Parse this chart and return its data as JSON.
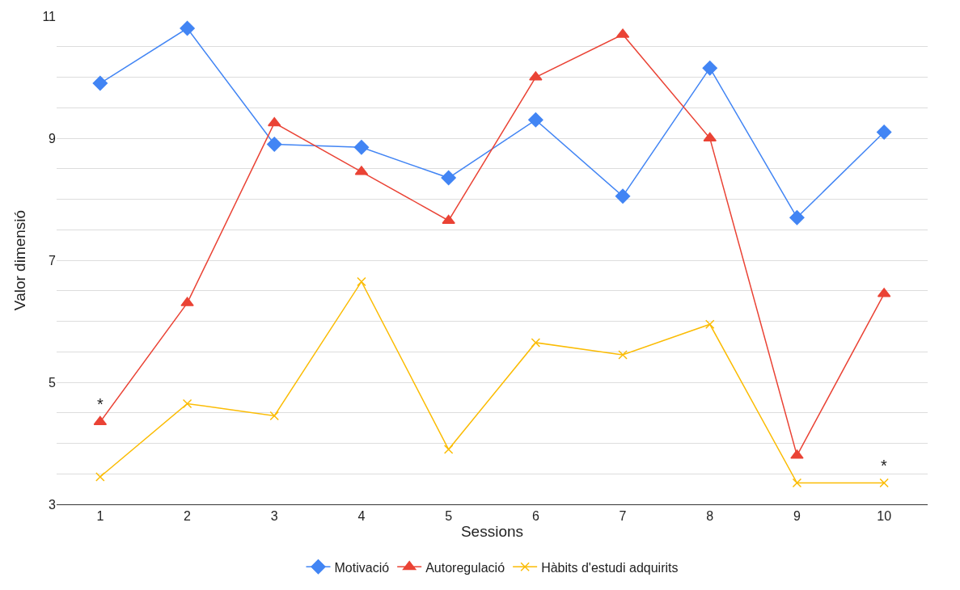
{
  "chart_data": {
    "type": "line",
    "xlabel": "Sessions",
    "ylabel": "Valor dimensió",
    "categories": [
      "1",
      "2",
      "3",
      "4",
      "5",
      "6",
      "7",
      "8",
      "9",
      "10"
    ],
    "series": [
      {
        "name": "Motivació",
        "color": "#4285f4",
        "marker": "diamond",
        "values": [
          9.9,
          10.8,
          8.9,
          8.85,
          8.35,
          9.3,
          8.05,
          10.15,
          7.7,
          9.1
        ]
      },
      {
        "name": "Autoregulació",
        "color": "#ea4335",
        "marker": "triangle",
        "values": [
          4.35,
          6.3,
          9.25,
          8.45,
          7.65,
          10.0,
          10.7,
          9.0,
          3.8,
          6.45
        ]
      },
      {
        "name": "Hàbits d'estudi adquirits",
        "color": "#fbbc04",
        "marker": "cross",
        "values": [
          3.45,
          4.65,
          4.45,
          6.65,
          3.9,
          5.65,
          5.45,
          5.95,
          3.35,
          3.35
        ]
      }
    ],
    "ylim": [
      3,
      11
    ],
    "yticks": [
      3,
      {
        "value": 3.5,
        "label": null
      },
      {
        "value": 4,
        "label": null
      },
      {
        "value": 4.5,
        "label": null
      },
      5,
      {
        "value": 5.5,
        "label": null
      },
      {
        "value": 6,
        "label": null
      },
      {
        "value": 6.5,
        "label": null
      },
      7,
      {
        "value": 7.5,
        "label": null
      },
      {
        "value": 8,
        "label": null
      },
      {
        "value": 8.5,
        "label": null
      },
      9,
      {
        "value": 9.5,
        "label": null
      },
      {
        "value": 10,
        "label": null
      },
      {
        "value": 10.5,
        "label": null
      },
      11
    ],
    "grid": "y",
    "legend": "bottom",
    "line_style": "solid",
    "annotations": [
      {
        "text": "*",
        "x": "1",
        "y": 4.35
      },
      {
        "text": "*",
        "x": "10",
        "y": 3.35
      }
    ]
  }
}
